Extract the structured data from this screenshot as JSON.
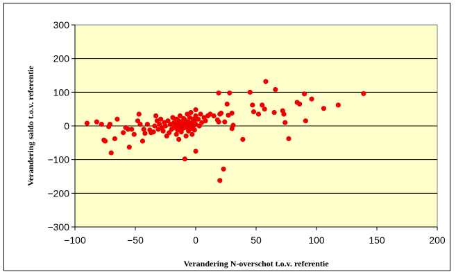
{
  "chart_data": {
    "type": "scatter",
    "xlabel": "Verandering N-overschot t.o.v. referentie",
    "ylabel": "Verandering saldo t.o.v. referentie",
    "xlim": [
      -100,
      200
    ],
    "ylim": [
      -300,
      300
    ],
    "x_ticks": [
      -100,
      -50,
      0,
      50,
      100,
      150,
      200
    ],
    "y_ticks": [
      -300,
      -200,
      -100,
      0,
      100,
      200,
      300
    ],
    "grid": "horizontal",
    "legend": "none",
    "colors": {
      "plot_bg": "#FFFFCC",
      "marker": "#EE0000",
      "grid": "#000000"
    },
    "points": [
      [
        -90,
        8
      ],
      [
        -82,
        12
      ],
      [
        -78,
        5
      ],
      [
        -76,
        -42
      ],
      [
        -75,
        -45
      ],
      [
        -72,
        -2
      ],
      [
        -71,
        5
      ],
      [
        -70,
        -80
      ],
      [
        -67,
        -38
      ],
      [
        -65,
        20
      ],
      [
        -60,
        -20
      ],
      [
        -58,
        -5
      ],
      [
        -56,
        -10
      ],
      [
        -55,
        -63
      ],
      [
        -53,
        -10
      ],
      [
        -51,
        -25
      ],
      [
        -48,
        15
      ],
      [
        -47,
        35
      ],
      [
        -46,
        5
      ],
      [
        -44,
        -45
      ],
      [
        -43,
        -10
      ],
      [
        -42,
        -22
      ],
      [
        -40,
        5
      ],
      [
        -38,
        -12
      ],
      [
        -37,
        -20
      ],
      [
        -35,
        -18
      ],
      [
        -34,
        0
      ],
      [
        -33,
        30
      ],
      [
        -32,
        15
      ],
      [
        -31,
        -10
      ],
      [
        -30,
        5
      ],
      [
        -29,
        20
      ],
      [
        -28,
        -5
      ],
      [
        -27,
        -15
      ],
      [
        -26,
        10
      ],
      [
        -25,
        0
      ],
      [
        -24,
        -30
      ],
      [
        -23,
        15
      ],
      [
        -22,
        -20
      ],
      [
        -21,
        5
      ],
      [
        -20,
        -10
      ],
      [
        -19,
        25
      ],
      [
        -18,
        -5
      ],
      [
        -18,
        10
      ],
      [
        -17,
        0
      ],
      [
        -16,
        -25
      ],
      [
        -16,
        20
      ],
      [
        -15,
        5
      ],
      [
        -15,
        -12
      ],
      [
        -14,
        15
      ],
      [
        -14,
        -3
      ],
      [
        -13,
        8
      ],
      [
        -13,
        30
      ],
      [
        -12,
        -18
      ],
      [
        -12,
        0
      ],
      [
        -11,
        12
      ],
      [
        -11,
        -8
      ],
      [
        -10,
        22
      ],
      [
        -10,
        2
      ],
      [
        -9,
        -5
      ],
      [
        -9,
        18
      ],
      [
        -8,
        -30
      ],
      [
        -8,
        8
      ],
      [
        -7,
        35
      ],
      [
        -7,
        -2
      ],
      [
        -6,
        12
      ],
      [
        -6,
        -15
      ],
      [
        -5,
        25
      ],
      [
        -5,
        5
      ],
      [
        -4,
        -8
      ],
      [
        -4,
        40
      ],
      [
        -3,
        10
      ],
      [
        -3,
        -25
      ],
      [
        -2,
        20
      ],
      [
        -2,
        0
      ],
      [
        -1,
        -12
      ],
      [
        -1,
        15
      ],
      [
        0,
        5
      ],
      [
        0,
        30
      ],
      [
        0,
        -75
      ],
      [
        0,
        48
      ],
      [
        2,
        20
      ],
      [
        3,
        0
      ],
      [
        4,
        35
      ],
      [
        5,
        10
      ],
      [
        7,
        25
      ],
      [
        8,
        15
      ],
      [
        10,
        30
      ],
      [
        12,
        35
      ],
      [
        15,
        30
      ],
      [
        18,
        18
      ],
      [
        19,
        12
      ],
      [
        19,
        98
      ],
      [
        20,
        -162
      ],
      [
        20,
        35
      ],
      [
        21,
        38
      ],
      [
        23,
        -128
      ],
      [
        24,
        12
      ],
      [
        26,
        65
      ],
      [
        27,
        32
      ],
      [
        28,
        98
      ],
      [
        30,
        38
      ],
      [
        30,
        -8
      ],
      [
        31,
        2
      ],
      [
        39,
        -40
      ],
      [
        45,
        100
      ],
      [
        47,
        62
      ],
      [
        48,
        42
      ],
      [
        52,
        35
      ],
      [
        55,
        62
      ],
      [
        57,
        50
      ],
      [
        58,
        132
      ],
      [
        65,
        40
      ],
      [
        66,
        108
      ],
      [
        72,
        45
      ],
      [
        73,
        35
      ],
      [
        74,
        10
      ],
      [
        77,
        -38
      ],
      [
        84,
        70
      ],
      [
        86,
        65
      ],
      [
        90,
        95
      ],
      [
        91,
        15
      ],
      [
        96,
        80
      ],
      [
        106,
        52
      ],
      [
        118,
        62
      ],
      [
        139,
        96
      ],
      [
        -9,
        -98
      ],
      [
        -14,
        -40
      ]
    ]
  }
}
